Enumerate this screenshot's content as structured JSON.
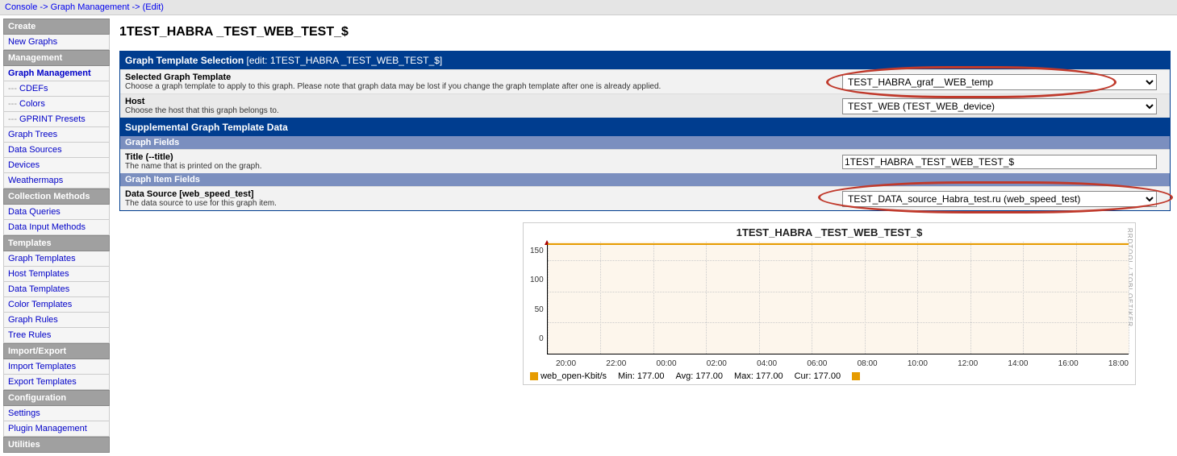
{
  "breadcrumb": {
    "console": "Console",
    "gm": "Graph Management",
    "edit": "(Edit)"
  },
  "sidebar": {
    "groups": [
      {
        "head": "Create",
        "items": [
          {
            "label": "New Graphs",
            "sub": false
          }
        ]
      },
      {
        "head": "Management",
        "items": [
          {
            "label": "Graph Management",
            "sub": false,
            "bold": true
          },
          {
            "label": "CDEFs",
            "sub": true
          },
          {
            "label": "Colors",
            "sub": true
          },
          {
            "label": "GPRINT Presets",
            "sub": true
          },
          {
            "label": "Graph Trees",
            "sub": false
          },
          {
            "label": "Data Sources",
            "sub": false
          },
          {
            "label": "Devices",
            "sub": false
          },
          {
            "label": "Weathermaps",
            "sub": false
          }
        ]
      },
      {
        "head": "Collection Methods",
        "items": [
          {
            "label": "Data Queries",
            "sub": false
          },
          {
            "label": "Data Input Methods",
            "sub": false
          }
        ]
      },
      {
        "head": "Templates",
        "items": [
          {
            "label": "Graph Templates",
            "sub": false
          },
          {
            "label": "Host Templates",
            "sub": false
          },
          {
            "label": "Data Templates",
            "sub": false
          },
          {
            "label": "Color Templates",
            "sub": false
          },
          {
            "label": "Graph Rules",
            "sub": false
          },
          {
            "label": "Tree Rules",
            "sub": false
          }
        ]
      },
      {
        "head": "Import/Export",
        "items": [
          {
            "label": "Import Templates",
            "sub": false
          },
          {
            "label": "Export Templates",
            "sub": false
          }
        ]
      },
      {
        "head": "Configuration",
        "items": [
          {
            "label": "Settings",
            "sub": false
          },
          {
            "label": "Plugin Management",
            "sub": false
          }
        ]
      },
      {
        "head": "Utilities",
        "items": []
      }
    ]
  },
  "page": {
    "title": "1TEST_HABRA _TEST_WEB_TEST_$"
  },
  "panel1": {
    "head": "Graph Template Selection",
    "head_sub": "[edit: 1TEST_HABRA _TEST_WEB_TEST_$]",
    "row1_lbl": "Selected Graph Template",
    "row1_desc": "Choose a graph template to apply to this graph. Please note that graph data may be lost if you change the graph template after one is already applied.",
    "row1_val": "TEST_HABRA_graf__WEB_temp",
    "row2_lbl": "Host",
    "row2_desc": "Choose the host that this graph belongs to.",
    "row2_val": "TEST_WEB (TEST_WEB_device)"
  },
  "panel2": {
    "head": "Supplemental Graph Template Data",
    "sub1": "Graph Fields",
    "row1_lbl": "Title (--title)",
    "row1_desc": "The name that is printed on the graph.",
    "row1_val": "1TEST_HABRA _TEST_WEB_TEST_$",
    "sub2": "Graph Item Fields",
    "row2_lbl": "Data Source [web_speed_test]",
    "row2_desc": "The data source to use for this graph item.",
    "row2_val": "TEST_DATA_source_Habra_test.ru (web_speed_test)"
  },
  "chart": {
    "title": "1TEST_HABRA _TEST_WEB_TEST_$",
    "yticks": [
      "150",
      "100",
      "50",
      "0"
    ],
    "ylim": [
      0,
      180
    ],
    "xticks": [
      "20:00",
      "22:00",
      "00:00",
      "02:00",
      "04:00",
      "06:00",
      "08:00",
      "10:00",
      "12:00",
      "14:00",
      "16:00",
      "18:00"
    ],
    "line_value": 177,
    "line_color": "#e69b00",
    "bg_color": "#fdf6ec",
    "legend_name": "web_open-Kbit/s",
    "stats": {
      "Min": "177.00",
      "Avg": "177.00",
      "Max": "177.00",
      "Cur": "177.00"
    },
    "rrd": "RRDTOOL / TOBI OETIKER"
  }
}
